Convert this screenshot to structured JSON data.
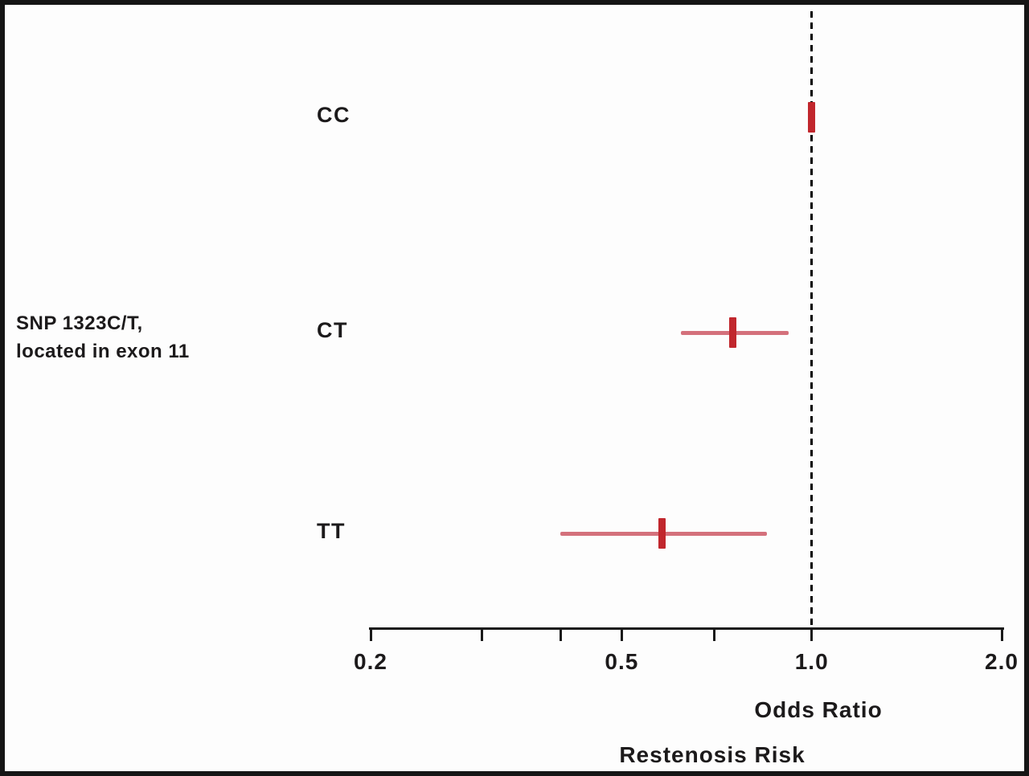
{
  "chart_data": {
    "type": "forest",
    "title": "",
    "group_label": "SNP 1323C/T,\nlocated in exon 11",
    "xlabel": "Odds Ratio",
    "xlabel_secondary": "Restenosis Risk",
    "x_scale": "log",
    "xlim": [
      0.2,
      2.0
    ],
    "reference_line": 1.0,
    "rows": [
      {
        "label": "CC",
        "or": 1.0,
        "ci_low": null,
        "ci_high": null
      },
      {
        "label": "CT",
        "or": 0.75,
        "ci_low": 0.62,
        "ci_high": 0.92
      },
      {
        "label": "TT",
        "or": 0.58,
        "ci_low": 0.4,
        "ci_high": 0.85
      }
    ],
    "x_ticks": [
      0.2,
      0.3,
      0.4,
      0.5,
      0.7,
      1.0,
      2.0
    ],
    "x_tick_labels": [
      {
        "value": 0.2,
        "label": "0.2"
      },
      {
        "value": 0.5,
        "label": "0.5"
      },
      {
        "value": 1.0,
        "label": "1.0"
      },
      {
        "value": 2.0,
        "label": "2.0"
      }
    ],
    "grid": false,
    "legend": "none",
    "colors": {
      "marker": "#c1272d",
      "ci": "#d4717c",
      "reference": "#000000",
      "axis": "#1a1a1a",
      "text": "#1c1a1b"
    }
  }
}
